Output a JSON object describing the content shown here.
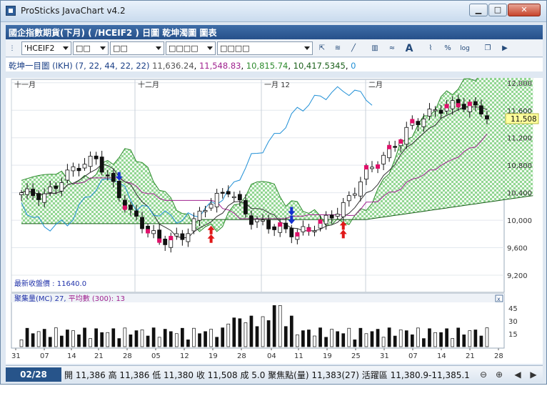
{
  "window": {
    "title": "ProSticks JavaChart v4.2"
  },
  "header": {
    "title": "國企指數期貨(下月) ( /HCEIF2 ) 日圖 乾坤濁圖 圖表"
  },
  "toolbar": {
    "symbol": "'HCEIF2",
    "dropdown1": "□□",
    "dropdown2": "□□",
    "dropdown3": "□□□□",
    "dropdown4": "□□□□",
    "tools": [
      "cursor-icon",
      "chart-style-icon",
      "draw-line-icon",
      "bar-chart-icon",
      "compare-icon",
      "font-icon",
      "line-chart-icon",
      "percent-icon",
      "log-scale-icon",
      "window-icon",
      "play-icon"
    ]
  },
  "indicator": {
    "name": "乾坤一目圖 (IKH)",
    "params": "(7, 22, 44, 22, 22)",
    "values": [
      {
        "text": "11,636.24",
        "color": "#555555"
      },
      {
        "text": "11,548.83",
        "color": "#a0228f"
      },
      {
        "text": "10,815.74",
        "color": "#2e8b2e"
      },
      {
        "text": "10,417.5345",
        "color": "#1a5f1a"
      },
      {
        "text": "0",
        "color": "#1f8fd6"
      }
    ]
  },
  "chart_data": [
    {
      "type": "candlestick",
      "title": "",
      "y_ticks": [
        12000,
        11600,
        11200,
        10800,
        10400,
        10000,
        9600,
        9200
      ],
      "ylim": [
        8950,
        12050
      ],
      "month_labels": [
        "十一月",
        "十二月",
        "一月 12",
        "二月"
      ],
      "x_labels": [
        "31",
        "07",
        "14",
        "21",
        "28",
        "05",
        "12",
        "19",
        "28",
        "04",
        "11",
        "19",
        "25",
        "31",
        "07",
        "14",
        "21",
        "28"
      ],
      "current_price": "11,508",
      "latest_close_note": "最新收盤價 : 11640.0",
      "colors": {
        "tenkan": "#333333",
        "kijun": "#a0228f",
        "senkou_a": "#2e8b2e",
        "senkou_b": "#1a5f1a",
        "chikou": "#1f8fd6",
        "cloud": "#7fcf7f",
        "buy_arrow": "#e01818",
        "sell_arrow": "#1530d0",
        "marker": "#e0106a"
      }
    },
    {
      "type": "bar",
      "title": "聚集量(MC) 27, 平均數 (300): 13",
      "label_main": "聚集量(MC)",
      "value_main": "27",
      "label_avg": "平均數 (300): 13",
      "y_ticks": [
        45,
        30,
        15
      ],
      "ylim": [
        0,
        50
      ]
    }
  ],
  "status": {
    "time": "02/28 16:14",
    "quote": "開 11,386 高 11,386 低 11,380 收 11,508 成 5.0 聚焦點(量) 11,383(27) 活躍區 11,380.9-11,385.1"
  }
}
